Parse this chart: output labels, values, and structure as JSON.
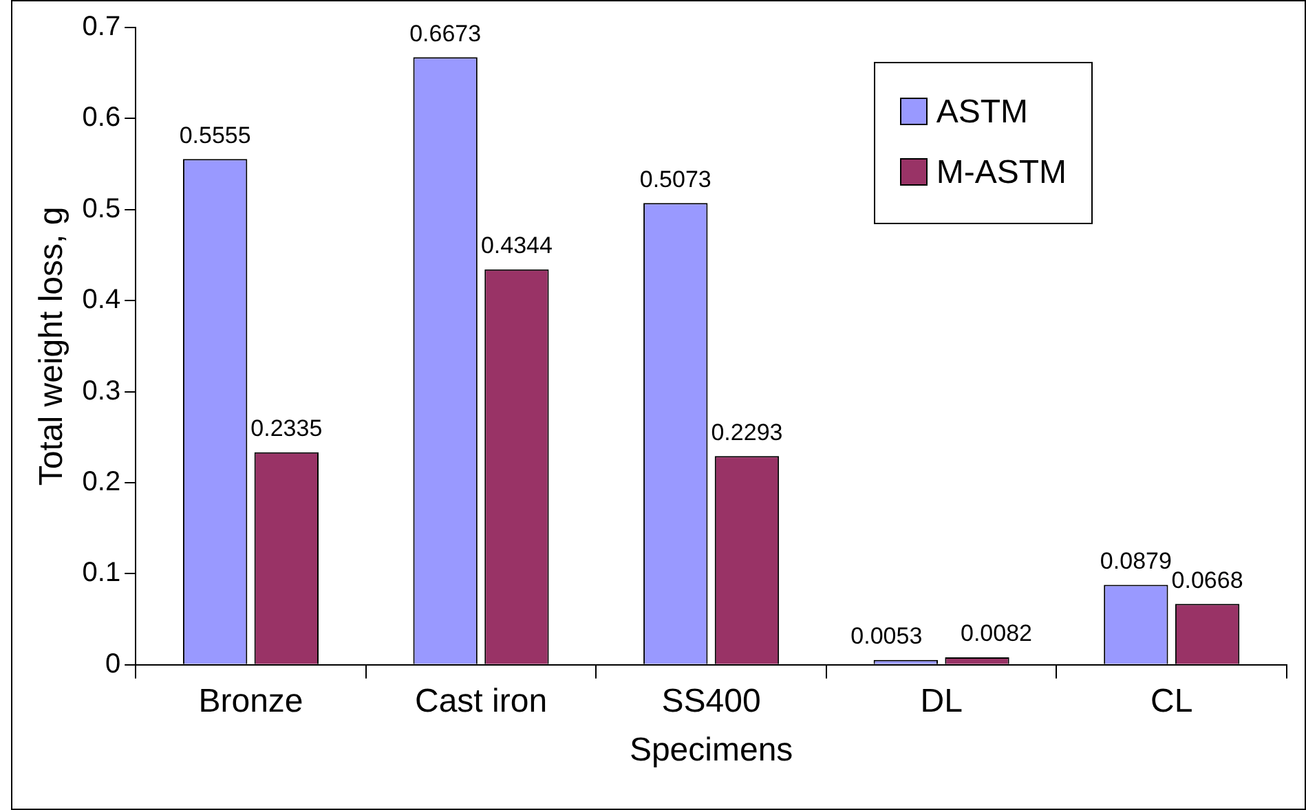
{
  "chart_data": {
    "type": "bar",
    "xlabel": "Specimens",
    "ylabel": "Total weight loss, g",
    "categories": [
      "Bronze",
      "Cast iron",
      "SS400",
      "DL",
      "CL"
    ],
    "series": [
      {
        "name": "ASTM",
        "color": "#9999ff",
        "values": [
          0.5555,
          0.6673,
          0.5073,
          0.0053,
          0.0879
        ]
      },
      {
        "name": "M-ASTM",
        "color": "#993366",
        "values": [
          0.2335,
          0.4344,
          0.2293,
          0.0082,
          0.0668
        ]
      }
    ],
    "ylim": [
      0,
      0.7
    ],
    "yticks": [
      0,
      0.1,
      0.2,
      0.3,
      0.4,
      0.5,
      0.6,
      0.7
    ],
    "grid": false,
    "legend": "top right",
    "data_labels": true
  }
}
